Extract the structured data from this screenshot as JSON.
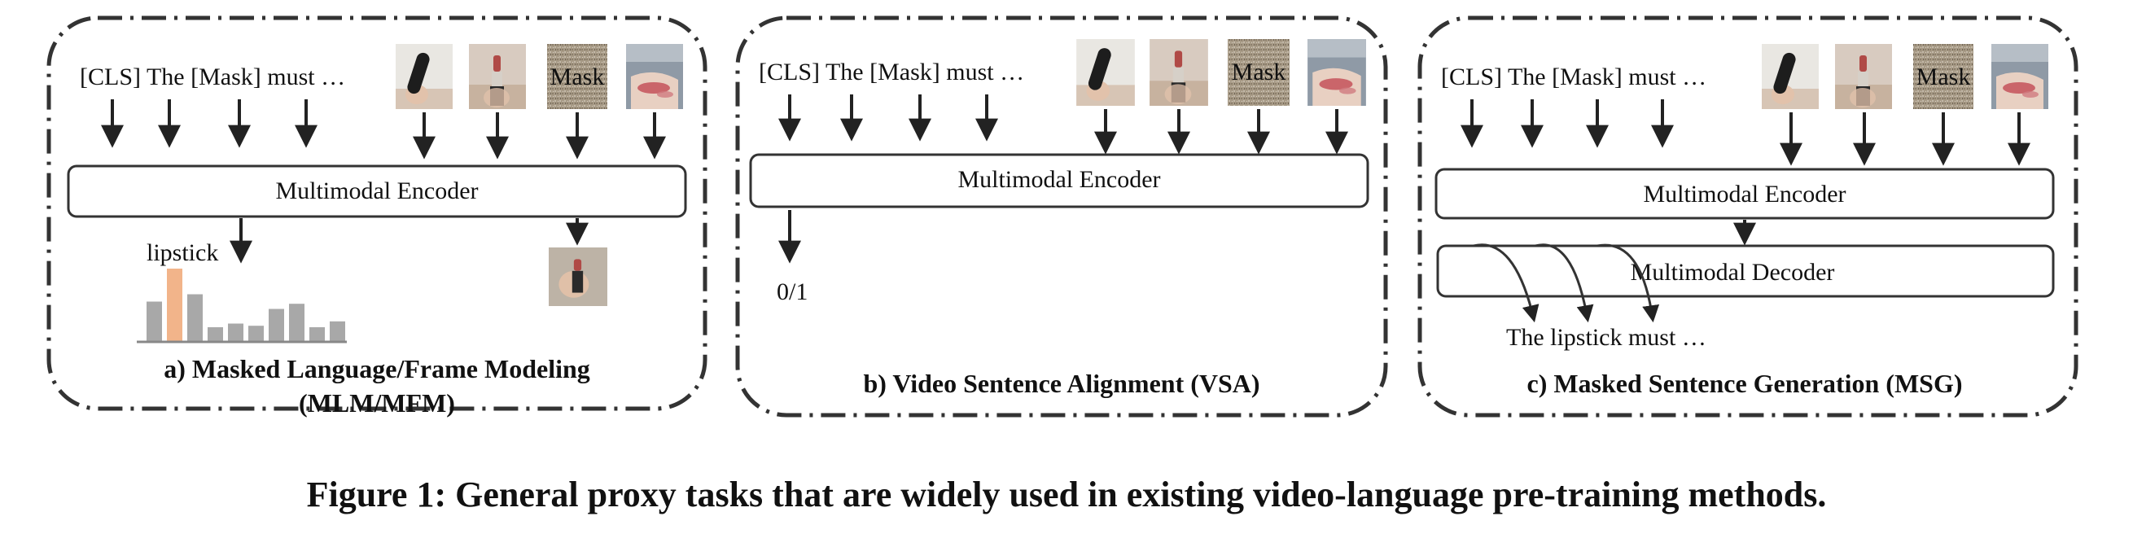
{
  "caption": "Figure 1: General proxy tasks that are widely used in existing video-language pre-training methods.",
  "panels": [
    {
      "id": "a",
      "input_text": "[CLS] The [Mask] must …",
      "frame_mask_label": "Mask",
      "encoder_label": "Multimodal Encoder",
      "predicted_word": "lipstick",
      "title_line1": "a) Masked Language/Frame Modeling",
      "title_line2": "(MLM/MFM)"
    },
    {
      "id": "b",
      "input_text": "[CLS] The [Mask] must …",
      "frame_mask_label": "Mask",
      "encoder_label": "Multimodal Encoder",
      "output_label": "0/1",
      "title": "b) Video Sentence Alignment (VSA)"
    },
    {
      "id": "c",
      "input_text": "[CLS] The [Mask] must …",
      "frame_mask_label": "Mask",
      "encoder_label": "Multimodal Encoder",
      "decoder_label": "Multimodal Decoder",
      "output_text": "The lipstick must …",
      "title": "c) Masked Sentence Generation (MSG)"
    }
  ],
  "histogram": {
    "values": [
      0.55,
      1.0,
      0.65,
      0.2,
      0.25,
      0.22,
      0.45,
      0.52,
      0.2,
      0.28
    ],
    "highlight_index": 1
  },
  "colors": {
    "highlight": "#f2b48a",
    "bar": "#a8a8a8",
    "frame_bg": "#a89a86",
    "mask_bg": "#a79a86"
  }
}
